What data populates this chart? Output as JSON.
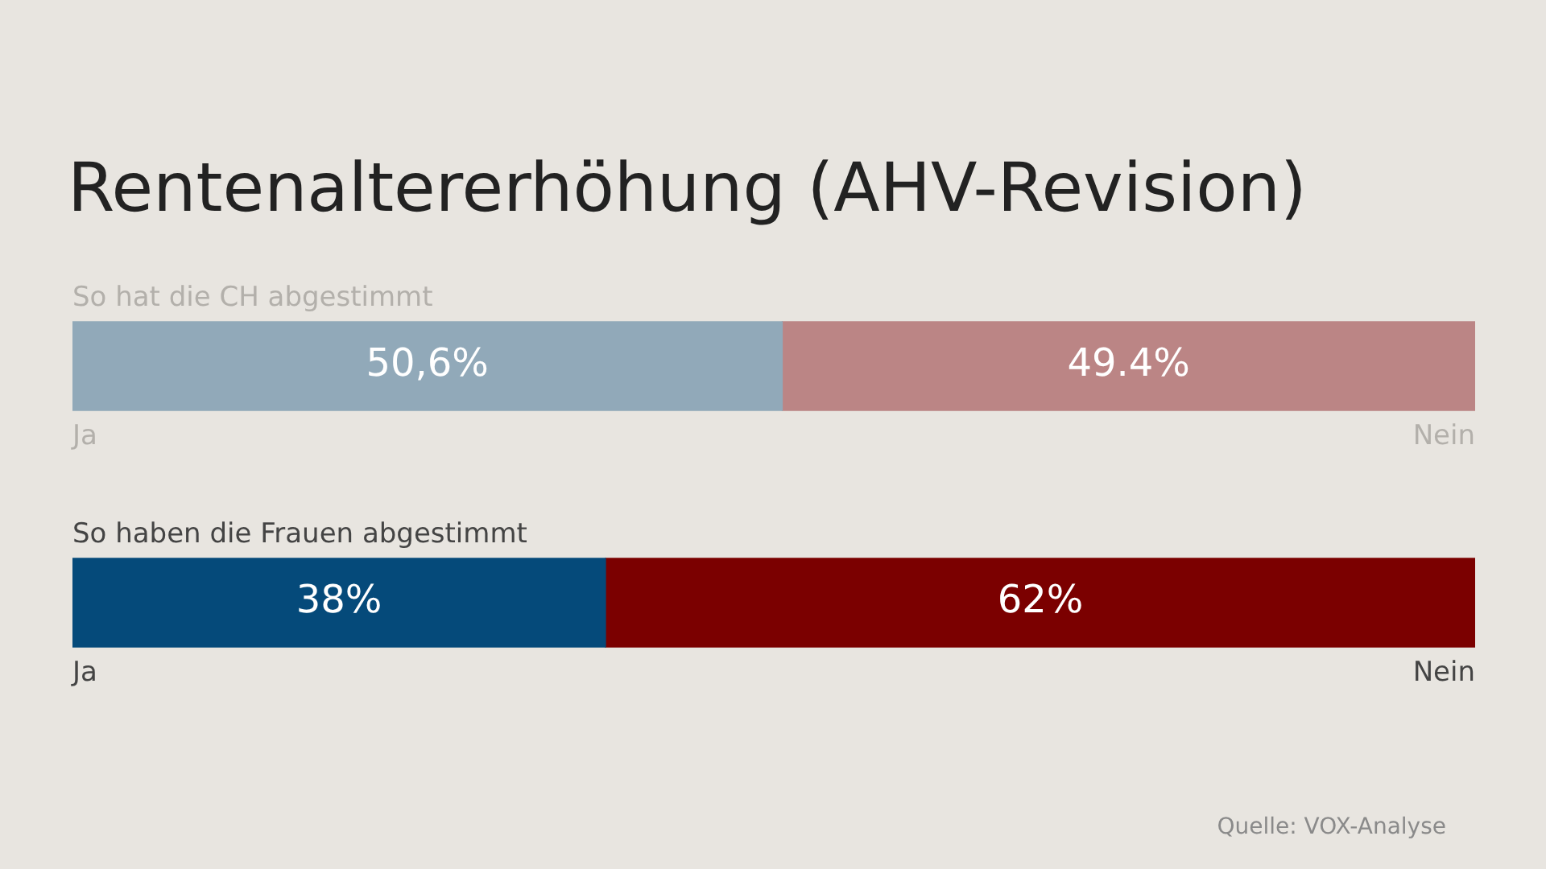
{
  "chart_data": {
    "type": "bar",
    "title": "Rentenaltererhöhung (AHV-Revision)",
    "categories": [
      "So hat die CH abgestimmt",
      "So haben die Frauen abgestimmt"
    ],
    "orientation": "horizontal",
    "stacked": true,
    "xlim": [
      0,
      100
    ],
    "series": [
      {
        "name": "Ja",
        "colors": [
          "#91a9b9",
          "#054a7a"
        ],
        "values": [
          50.6,
          38
        ],
        "value_labels": [
          "50,6%",
          "38%"
        ]
      },
      {
        "name": "Nein",
        "colors": [
          "#bb8585",
          "#7b0000"
        ],
        "values": [
          49.4,
          62
        ],
        "value_labels": [
          "49.4%",
          "62%"
        ]
      }
    ],
    "annotations": [
      "Quelle: VOX-Analyse"
    ]
  }
}
